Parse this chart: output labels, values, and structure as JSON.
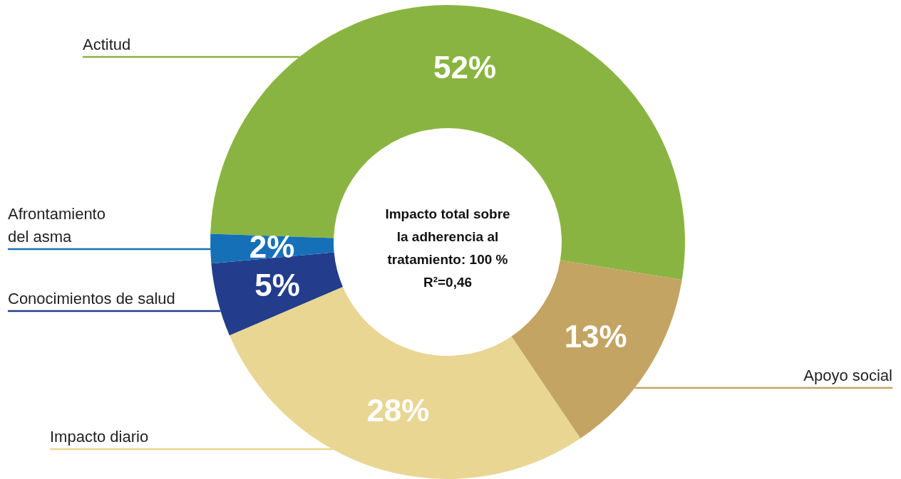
{
  "chart_data": {
    "type": "donut",
    "categories": [
      "Actitud",
      "Apoyo social",
      "Impacto diario",
      "Conocimientos de salud",
      "Afrontamiento del asma"
    ],
    "values": [
      52,
      13,
      28,
      5,
      2
    ],
    "colors": [
      "#8ab441",
      "#c4a463",
      "#e8d692",
      "#233d8c",
      "#1670b8"
    ],
    "value_labels": [
      "52%",
      "13%",
      "28%",
      "5%",
      "2%"
    ],
    "annotations": [
      "Impacto total sobre la adherencia al tratamiento: 100 %",
      "R²=0,46"
    ]
  }
}
